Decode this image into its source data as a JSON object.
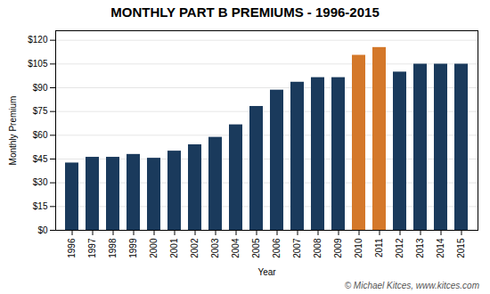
{
  "chart_data": {
    "type": "bar",
    "title": "MONTHLY PART B PREMIUMS - 1996-2015",
    "xlabel": "Year",
    "ylabel": "Monthly Premium",
    "categories": [
      "1996",
      "1997",
      "1998",
      "1999",
      "2000",
      "2001",
      "2002",
      "2003",
      "2004",
      "2005",
      "2006",
      "2007",
      "2008",
      "2009",
      "2010",
      "2011",
      "2012",
      "2013",
      "2014",
      "2015"
    ],
    "values": [
      42.5,
      46.1,
      46.1,
      47.9,
      45.5,
      50.0,
      54.0,
      58.7,
      66.6,
      78.2,
      88.5,
      93.5,
      96.4,
      96.4,
      110.5,
      115.4,
      99.9,
      104.9,
      104.9,
      104.9
    ],
    "colors": [
      "#1a3a5c",
      "#1a3a5c",
      "#1a3a5c",
      "#1a3a5c",
      "#1a3a5c",
      "#1a3a5c",
      "#1a3a5c",
      "#1a3a5c",
      "#1a3a5c",
      "#1a3a5c",
      "#1a3a5c",
      "#1a3a5c",
      "#1a3a5c",
      "#1a3a5c",
      "#d4782a",
      "#d4782a",
      "#1a3a5c",
      "#1a3a5c",
      "#1a3a5c",
      "#1a3a5c"
    ],
    "ylim": [
      0,
      126
    ],
    "yticks": [
      {
        "value": 0,
        "label": "$0"
      },
      {
        "value": 15,
        "label": "$15"
      },
      {
        "value": 30,
        "label": "$30"
      },
      {
        "value": 45,
        "label": "$45"
      },
      {
        "value": 60,
        "label": "$60"
      },
      {
        "value": 75,
        "label": "$75"
      },
      {
        "value": 90,
        "label": "$90"
      },
      {
        "value": 105,
        "label": "$105"
      },
      {
        "value": 120,
        "label": "$120"
      }
    ],
    "grid": true,
    "annotations": [
      "© Michael Kitces, www.kitces.com"
    ]
  }
}
